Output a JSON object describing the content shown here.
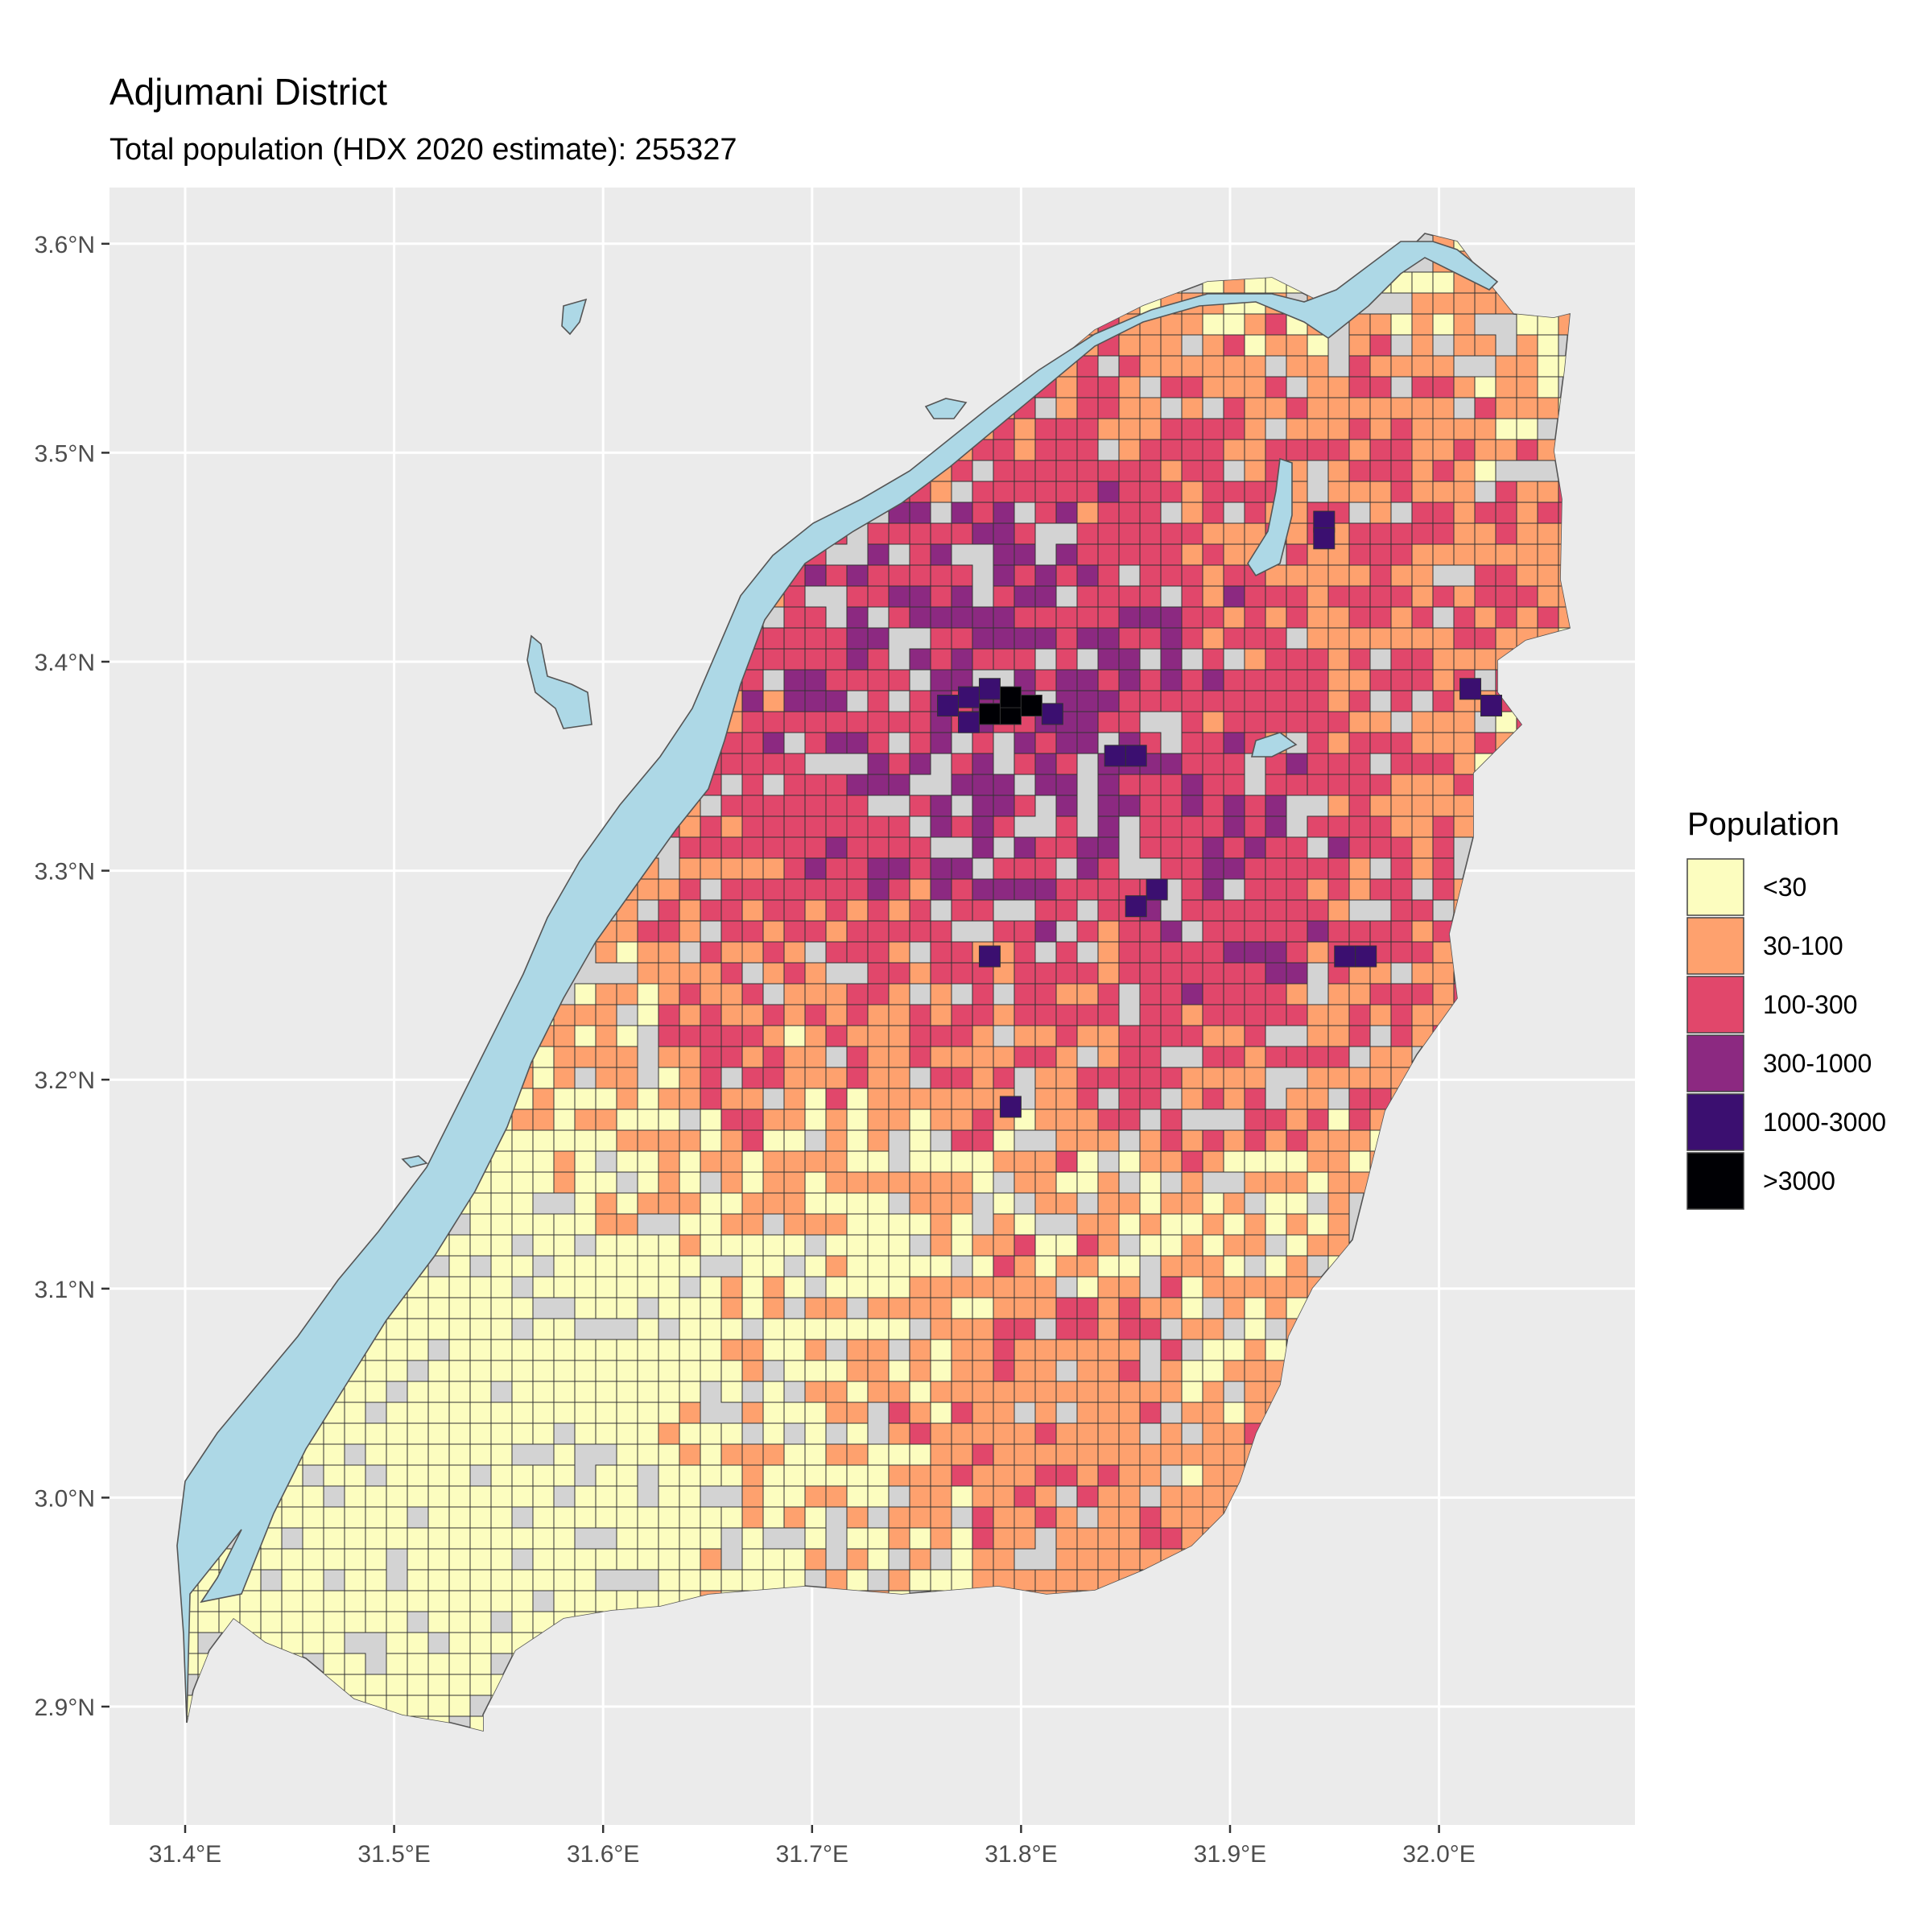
{
  "title": "Adjumani District",
  "subtitle": "Total population (HDX 2020 estimate): 255327",
  "axes": {
    "x_ticks": [
      "31.4°E",
      "31.5°E",
      "31.6°E",
      "31.7°E",
      "31.8°E",
      "31.9°E",
      "32.0°E"
    ],
    "y_ticks": [
      "3.6°N",
      "3.5°N",
      "3.4°N",
      "3.3°N",
      "3.2°N",
      "3.1°N",
      "3.0°N",
      "2.9°N"
    ]
  },
  "legend": {
    "title": "Population",
    "classes": [
      {
        "label": "<30",
        "color": "#fcfdbf"
      },
      {
        "label": "30-100",
        "color": "#fea16e"
      },
      {
        "label": "100-300",
        "color": "#e1476b"
      },
      {
        "label": "300-1000",
        "color": "#8c2981"
      },
      {
        "label": "1000-3000",
        "color": "#3b0f70"
      },
      {
        "label": ">3000",
        "color": "#000004"
      }
    ]
  },
  "colors": {
    "panel_background": "#ebebeb",
    "grid": "#ffffff",
    "district_fill": "#d3d3d3",
    "water": "#add8e6",
    "cell_border": "#333333"
  },
  "chart_data": {
    "type": "heatmap",
    "title": "Adjumani District",
    "subtitle": "Total population (HDX 2020 estimate): 255327",
    "xlim": [
      31.365,
      32.095
    ],
    "ylim": [
      2.84,
      3.625
    ],
    "x_ticks": [
      31.4,
      31.5,
      31.6,
      31.7,
      31.8,
      31.9,
      32.0
    ],
    "y_ticks": [
      2.9,
      3.0,
      3.1,
      3.2,
      3.3,
      3.4,
      3.5,
      3.6
    ],
    "grid": true,
    "legend_position": "right",
    "legend_title": "Population",
    "classes": [
      "<30",
      "30-100",
      "100-300",
      "300-1000",
      "1000-3000",
      ">3000"
    ],
    "highlight_cells": [
      {
        "lon": 31.795,
        "lat": 3.375,
        "class": ">3000"
      },
      {
        "lon": 31.785,
        "lat": 3.375,
        "class": ">3000"
      },
      {
        "lon": 31.795,
        "lat": 3.383,
        "class": ">3000"
      },
      {
        "lon": 31.805,
        "lat": 3.379,
        "class": ">3000"
      },
      {
        "lon": 31.775,
        "lat": 3.383,
        "class": "1000-3000"
      },
      {
        "lon": 31.785,
        "lat": 3.387,
        "class": "1000-3000"
      },
      {
        "lon": 31.765,
        "lat": 3.379,
        "class": "1000-3000"
      },
      {
        "lon": 31.775,
        "lat": 3.371,
        "class": "1000-3000"
      },
      {
        "lon": 31.815,
        "lat": 3.375,
        "class": "1000-3000"
      },
      {
        "lon": 31.945,
        "lat": 3.467,
        "class": "1000-3000"
      },
      {
        "lon": 31.945,
        "lat": 3.459,
        "class": "1000-3000"
      },
      {
        "lon": 32.015,
        "lat": 3.387,
        "class": "1000-3000"
      },
      {
        "lon": 32.025,
        "lat": 3.379,
        "class": "1000-3000"
      },
      {
        "lon": 31.955,
        "lat": 3.259,
        "class": "1000-3000"
      },
      {
        "lon": 31.965,
        "lat": 3.259,
        "class": "1000-3000"
      },
      {
        "lon": 31.865,
        "lat": 3.291,
        "class": "1000-3000"
      },
      {
        "lon": 31.855,
        "lat": 3.283,
        "class": "1000-3000"
      },
      {
        "lon": 31.785,
        "lat": 3.259,
        "class": "1000-3000"
      },
      {
        "lon": 31.795,
        "lat": 3.187,
        "class": "1000-3000"
      },
      {
        "lon": 31.855,
        "lat": 3.355,
        "class": "1000-3000"
      },
      {
        "lon": 31.845,
        "lat": 3.355,
        "class": "1000-3000"
      }
    ]
  }
}
